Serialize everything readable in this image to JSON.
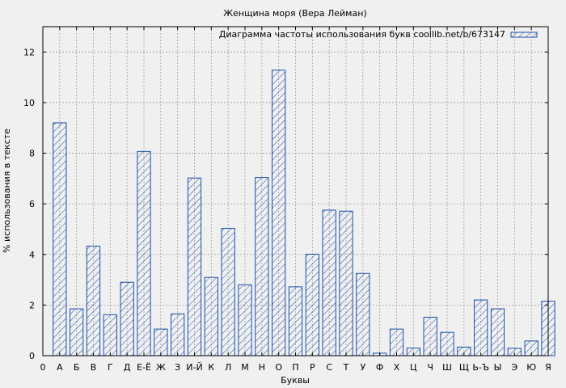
{
  "chart_data": {
    "type": "bar",
    "title": "Женщина моря (Вера Лейман)",
    "xlabel": "Буквы",
    "ylabel": "% использования в тексте",
    "legend_label": "Диаграмма частоты использования букв coollib.net/b/673147",
    "legend_position": "top-right",
    "grid": true,
    "ylim": [
      0,
      13
    ],
    "yticks": [
      0,
      2,
      4,
      6,
      8,
      10,
      12
    ],
    "xlim": [
      0,
      30
    ],
    "x_origin_label": "0",
    "categories": [
      "А",
      "Б",
      "В",
      "Г",
      "Д",
      "Е-Ё",
      "Ж",
      "З",
      "И-Й",
      "К",
      "Л",
      "М",
      "Н",
      "О",
      "П",
      "Р",
      "С",
      "Т",
      "У",
      "Ф",
      "Х",
      "Ц",
      "Ч",
      "Ш",
      "Щ",
      "Ь-Ъ",
      "Ы",
      "Э",
      "Ю",
      "Я"
    ],
    "values": [
      9.2,
      1.85,
      4.33,
      1.62,
      2.9,
      8.07,
      1.05,
      1.65,
      7.02,
      3.09,
      5.03,
      2.8,
      7.04,
      11.28,
      2.72,
      4.01,
      5.75,
      5.71,
      3.25,
      0.1,
      1.05,
      0.3,
      1.52,
      0.92,
      0.34,
      2.2,
      1.85,
      0.29,
      0.58,
      2.15
    ],
    "colors": {
      "bar_stroke": "#1a4fa8",
      "hatch": "#1a4fa8",
      "grid": "#a0a0a0",
      "plot_bg": "#f0f0f0"
    }
  }
}
